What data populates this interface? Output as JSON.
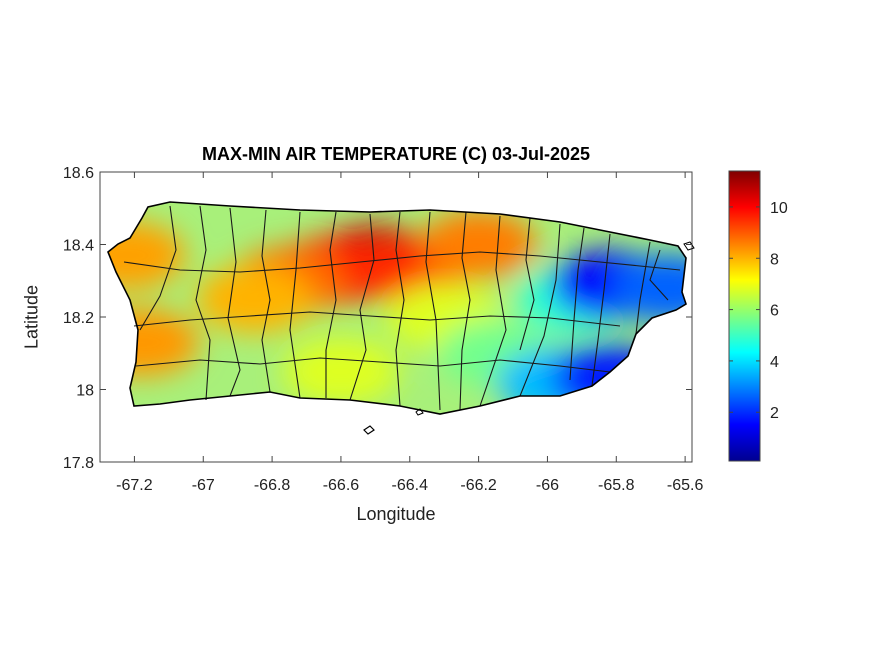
{
  "title": "MAX-MIN AIR TEMPERATURE (C) 03-Jul-2025",
  "xlabel": "Longitude",
  "ylabel": "Latitude",
  "chart_data": {
    "type": "heatmap",
    "title": "MAX-MIN AIR TEMPERATURE (C) 03-Jul-2025",
    "xlabel": "Longitude",
    "ylabel": "Latitude",
    "xlim": [
      -67.3,
      -65.58
    ],
    "ylim": [
      17.8,
      18.6
    ],
    "x_ticks": [
      -67.2,
      -67,
      -66.8,
      -66.6,
      -66.4,
      -66.2,
      -66,
      -65.8,
      -65.6
    ],
    "x_tick_labels": [
      "-67.2",
      "-67",
      "-66.8",
      "-66.6",
      "-66.4",
      "-66.2",
      "-66",
      "-65.8",
      "-65.6"
    ],
    "y_ticks": [
      17.8,
      18,
      18.2,
      18.4,
      18.6
    ],
    "y_tick_labels": [
      "17.8",
      "18",
      "18.2",
      "18.4",
      "18.6"
    ],
    "colorbar": {
      "colormap": "jet",
      "range": [
        0.1,
        11.4
      ],
      "ticks": [
        2,
        4,
        6,
        8,
        10
      ],
      "tick_labels": [
        "2",
        "4",
        "6",
        "8",
        "10"
      ]
    },
    "regions": [
      {
        "lon": -66.5,
        "lat": 18.36,
        "value": 10.8
      },
      {
        "lon": -66.62,
        "lat": 18.33,
        "value": 9.8
      },
      {
        "lon": -66.4,
        "lat": 18.33,
        "value": 9.5
      },
      {
        "lon": -66.75,
        "lat": 18.3,
        "value": 8.8
      },
      {
        "lon": -66.2,
        "lat": 18.4,
        "value": 8.6
      },
      {
        "lon": -67.22,
        "lat": 18.37,
        "value": 8.2
      },
      {
        "lon": -67.18,
        "lat": 18.13,
        "value": 8.3
      },
      {
        "lon": -66.85,
        "lat": 18.25,
        "value": 8.0
      },
      {
        "lon": -66.3,
        "lat": 18.2,
        "value": 6.8
      },
      {
        "lon": -66.6,
        "lat": 18.05,
        "value": 6.8
      },
      {
        "lon": -66.15,
        "lat": 18.1,
        "value": 5.6
      },
      {
        "lon": -65.92,
        "lat": 18.25,
        "value": 4.8
      },
      {
        "lon": -65.98,
        "lat": 18.02,
        "value": 3.6
      },
      {
        "lon": -65.82,
        "lat": 18.29,
        "value": 1.5
      },
      {
        "lon": -65.82,
        "lat": 18.03,
        "value": 1.8
      },
      {
        "lon": -65.65,
        "lat": 18.28,
        "value": 2.6
      }
    ]
  }
}
